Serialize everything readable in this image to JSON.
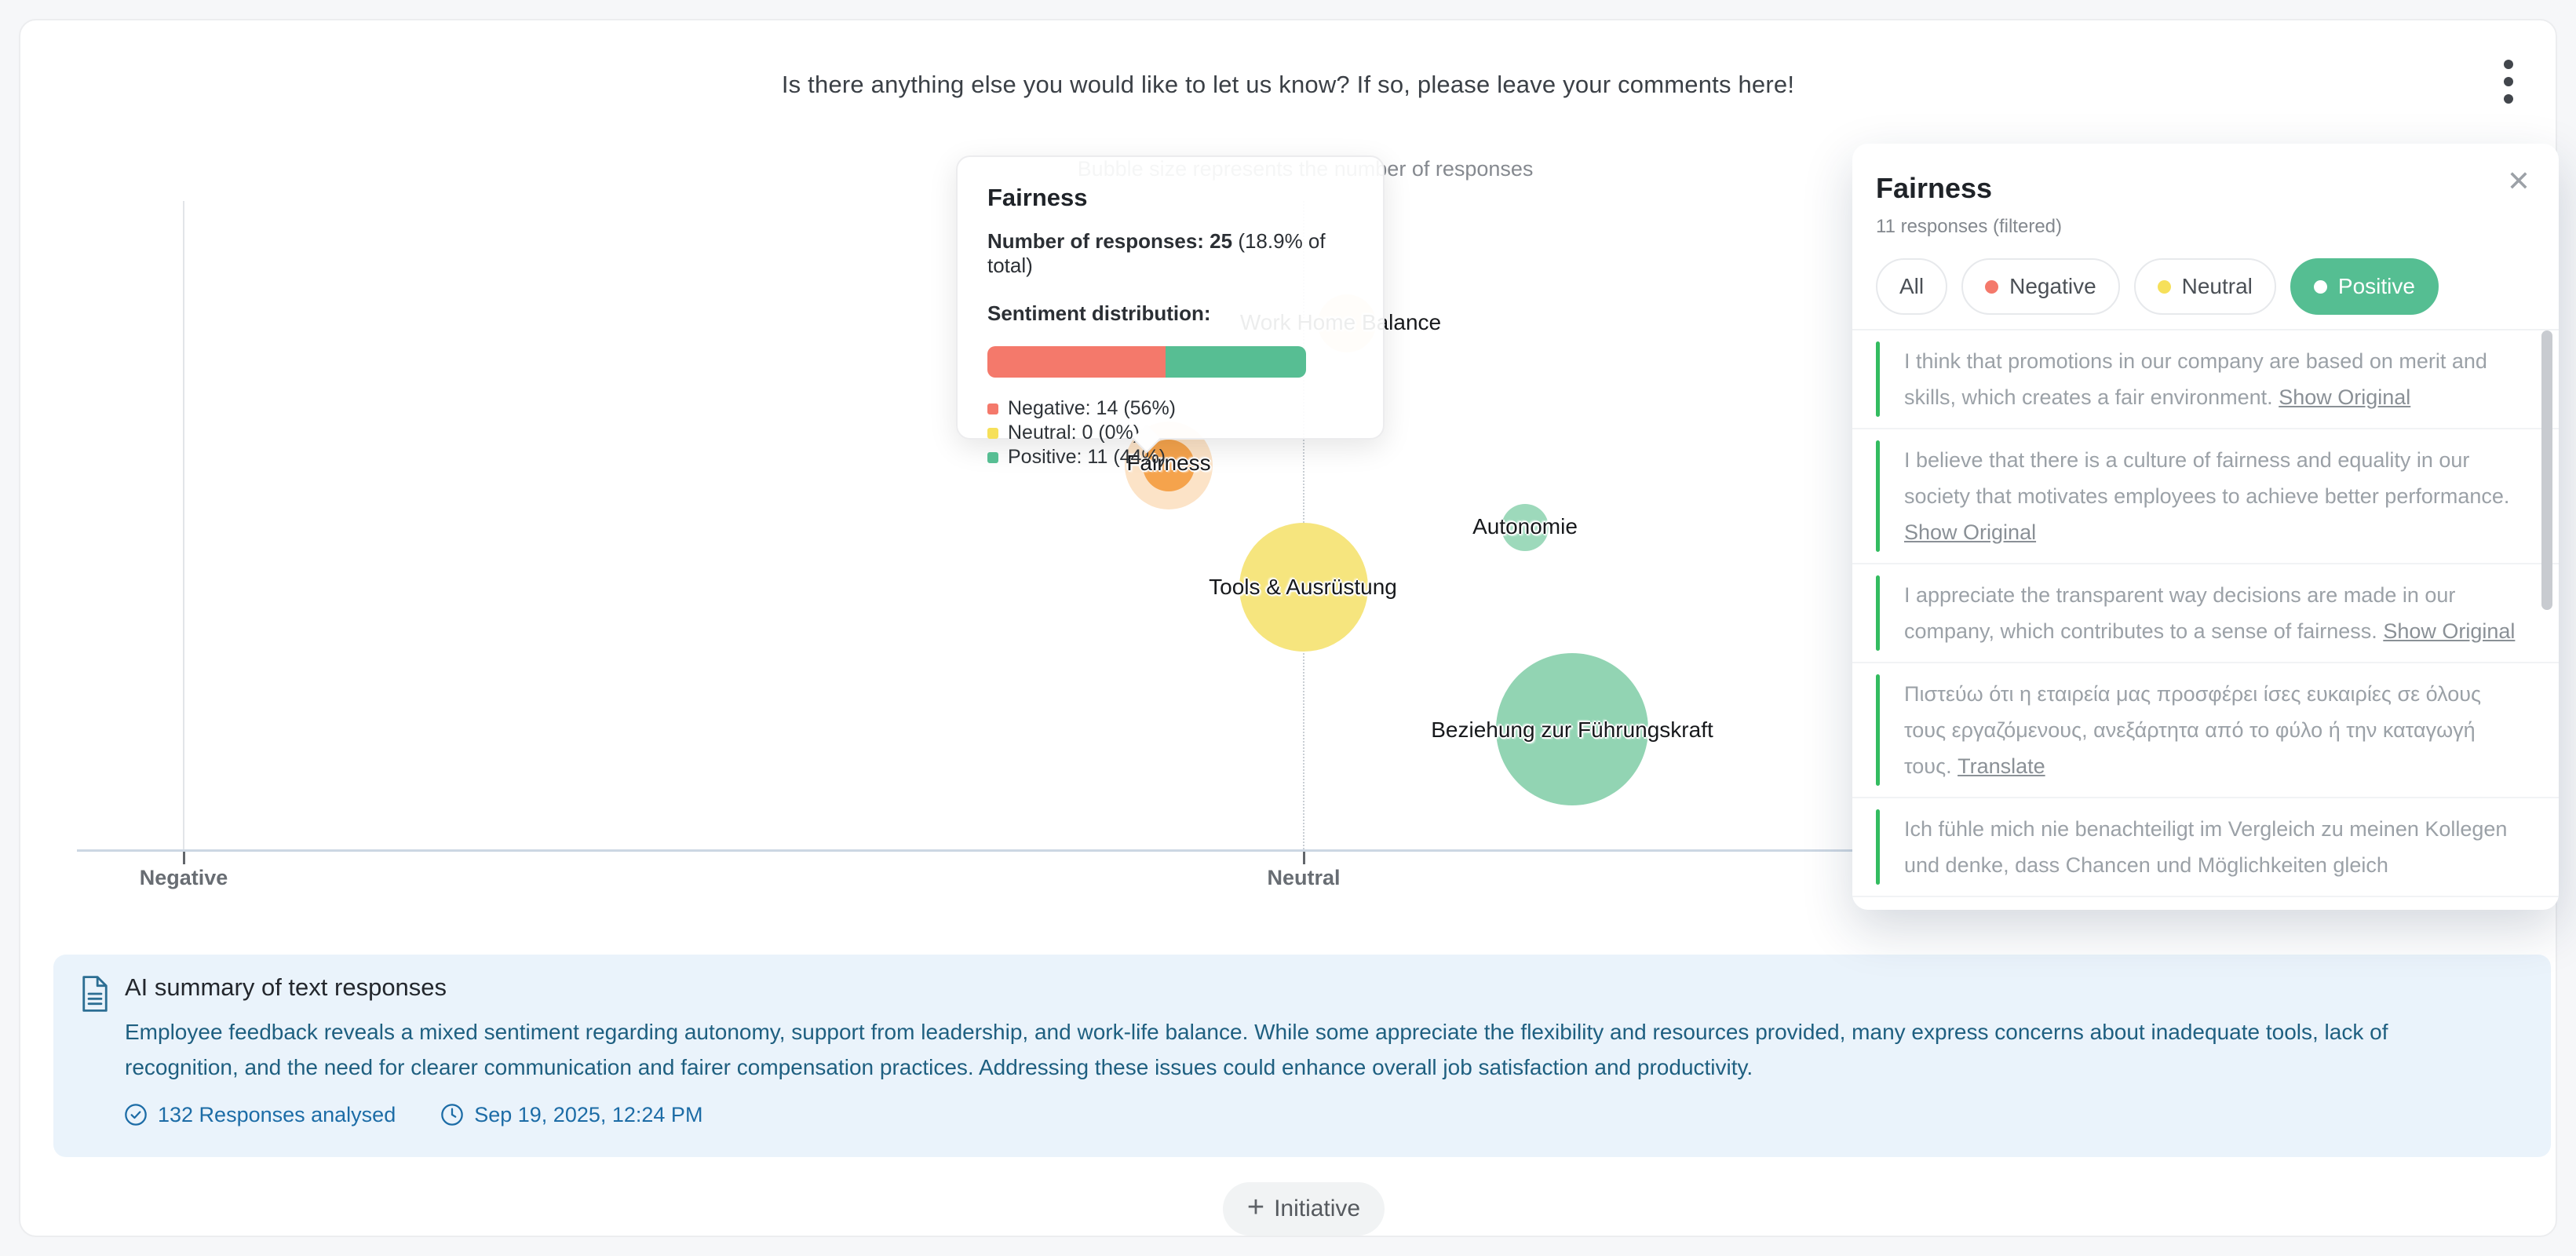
{
  "header": {
    "question_title": "Is there anything else you would like to let us know? If so, please leave your comments here!"
  },
  "chart": {
    "caption": "Bubble size represents the number of responses",
    "x_axis_labels": {
      "negative": "Negative",
      "neutral": "Neutral"
    },
    "bubbles": [
      {
        "label": "Work Home Balance",
        "color": "#f7cd8a",
        "x_axis_zone": "neutral",
        "approx_radius_px": 37
      },
      {
        "label": "Fairness",
        "color": "#f5a34c",
        "x_axis_zone": "negative-neutral",
        "approx_radius_px": 33,
        "highlighted": true
      },
      {
        "label": "Autonomie",
        "color": "#9dd9bb",
        "x_axis_zone": "neutral-positive",
        "approx_radius_px": 30
      },
      {
        "label": "Tools & Ausrüstung",
        "color": "#f6e57e",
        "x_axis_zone": "neutral",
        "approx_radius_px": 82
      },
      {
        "label": "Beziehung zur Führungskraft",
        "color": "#92d4b3",
        "x_axis_zone": "neutral-positive",
        "approx_radius_px": 97
      }
    ]
  },
  "tooltip": {
    "title": "Fairness",
    "responses_bold": "Number of responses: 25",
    "responses_rest": " (18.9% of total)",
    "distribution_label": "Sentiment distribution:",
    "bar": {
      "negative_pct": 56,
      "neutral_pct": 0,
      "positive_pct": 44
    },
    "legend": [
      {
        "text": "Negative: 14 (56%)",
        "color": "#f4796b"
      },
      {
        "text": "Neutral: 0 (0%)",
        "color": "#f6e05a"
      },
      {
        "text": "Positive: 11 (44%)",
        "color": "#57be93"
      }
    ]
  },
  "panel": {
    "title": "Fairness",
    "subtitle": "11 responses (filtered)",
    "close_icon": "✕",
    "filters": [
      {
        "label": "All",
        "active": false
      },
      {
        "label": "Negative",
        "dot_color": "#f4796b",
        "active": false
      },
      {
        "label": "Neutral",
        "dot_color": "#f6e05a",
        "active": false
      },
      {
        "label": "Positive",
        "dot_color": "#ffffff",
        "active": true,
        "active_bg": "#55be92"
      }
    ],
    "responses": [
      {
        "text": "I think that promotions in our company are based on merit and skills, which creates a fair environment. ",
        "link": "Show Original"
      },
      {
        "text": "I believe that there is a culture of fairness and equality in our society that motivates employees to achieve better performance. ",
        "link": "Show Original"
      },
      {
        "text": "I appreciate the transparent way decisions are made in our company, which contributes to a sense of fairness. ",
        "link": "Show Original"
      },
      {
        "text": "Πιστεύω ότι η εταιρεία μας προσφέρει ίσες ευκαιρίες σε όλους τους εργαζόμενους, ανεξάρτητα από το φύλο ή την καταγωγή τους. ",
        "link": "Translate"
      },
      {
        "text": "Ich fühle mich nie benachteiligt im Vergleich zu meinen Kollegen und denke, dass Chancen und Möglichkeiten gleich",
        "link": ""
      }
    ]
  },
  "ai_summary": {
    "title": "AI summary of text responses",
    "body": "Employee feedback reveals a mixed sentiment regarding autonomy, support from leadership, and work-life balance. While some appreciate the flexibility and resources provided, many express concerns about inadequate tools, lack of recognition, and the need for clearer communication and fairer compensation practices. Addressing these issues could enhance overall job satisfaction and productivity.",
    "responses_analysed": "132 Responses analysed",
    "timestamp": "Sep 19, 2025, 12:24 PM"
  },
  "footer": {
    "plus": "+",
    "initiative_label": "Initiative"
  },
  "colors": {
    "negative": "#f4796b",
    "neutral": "#f6e05a",
    "positive": "#57be93",
    "ai_text": "#1e5f80",
    "ai_link": "#1c6ca6",
    "ai_bg": "#eaf3fb",
    "response_accent": "#33bc60"
  }
}
